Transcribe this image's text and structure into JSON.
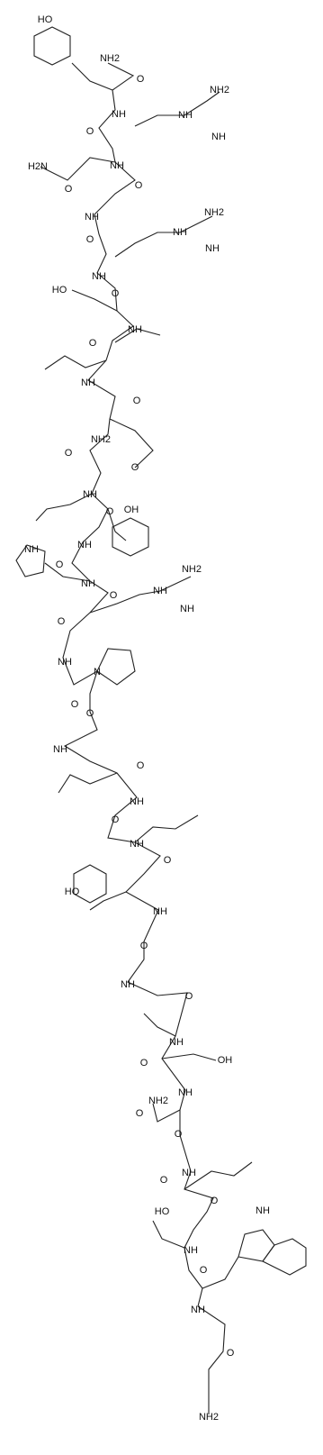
{
  "labels": [
    "HO",
    "NH2",
    "O",
    "NH",
    "NH2",
    "NH",
    "NH",
    "O",
    "NH",
    "H2N",
    "O",
    "O",
    "NH",
    "NH2",
    "NH",
    "NH",
    "O",
    "NH",
    "HO",
    "O",
    "NH",
    "O",
    "NH",
    "O",
    "NH2",
    "O",
    "O",
    "NH",
    "OH",
    "O",
    "NH",
    "O",
    "NH",
    "NH",
    "O",
    "NH2",
    "NH",
    "NH",
    "O",
    "NH",
    "N",
    "O",
    "O",
    "NH",
    "O",
    "NH",
    "O",
    "NH",
    "O",
    "HO",
    "NH",
    "O",
    "NH",
    "O",
    "NH",
    "OH",
    "O",
    "NH",
    "NH2",
    "O",
    "O",
    "NH",
    "O",
    "O",
    "HO",
    "NH",
    "NH",
    "O",
    "NH",
    "O",
    "NH2"
  ]
}
